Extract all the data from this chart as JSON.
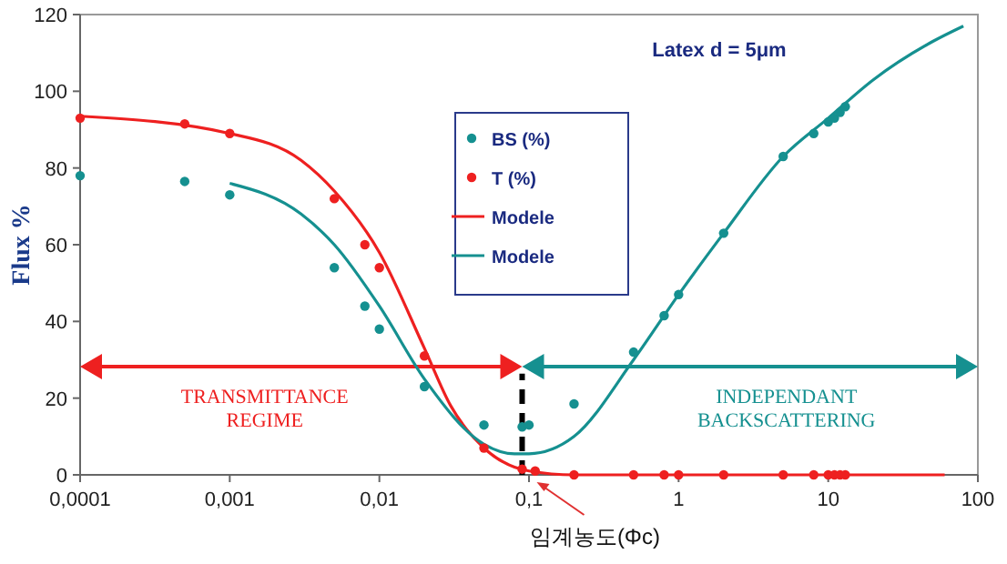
{
  "chart_data": {
    "type": "scatter",
    "title": "Latex d = 5μm",
    "ylabel": "Flux %",
    "log": "x",
    "grid": false,
    "legend": "top",
    "xlim": [
      0.0001,
      100
    ],
    "ylim": [
      0,
      120
    ],
    "xticks": [
      {
        "value": 0.0001,
        "label": "0,0001"
      },
      {
        "value": 0.001,
        "label": "0,001"
      },
      {
        "value": 0.01,
        "label": "0,01"
      },
      {
        "value": 0.1,
        "label": "0,1"
      },
      1,
      10,
      100
    ],
    "yticks": [
      0,
      20,
      40,
      60,
      80,
      100,
      120
    ],
    "series": [
      {
        "name": "BS (%)",
        "marker": "circle",
        "color": "#159090",
        "x": [
          0.0001,
          0.0005,
          0.001,
          0.005,
          0.008,
          0.01,
          0.02,
          0.05,
          0.09,
          0.1,
          0.2,
          0.5,
          0.8,
          1,
          2,
          5,
          8,
          10,
          11,
          12,
          13
        ],
        "values": [
          78,
          76.5,
          73,
          54,
          44,
          38,
          23,
          13,
          12.5,
          13,
          18.5,
          32,
          41.5,
          47,
          63,
          83,
          89,
          92,
          93,
          94.5,
          96
        ]
      },
      {
        "name": "T (%)",
        "marker": "circle",
        "color": "#ee2020",
        "x": [
          0.0001,
          0.0005,
          0.001,
          0.005,
          0.008,
          0.01,
          0.02,
          0.05,
          0.09,
          0.11,
          0.2,
          0.5,
          0.8,
          1,
          2,
          5,
          8,
          10,
          11,
          12,
          13
        ],
        "values": [
          93,
          91.5,
          89,
          72,
          60,
          54,
          31,
          7,
          1.5,
          1,
          0,
          0,
          0,
          0,
          0,
          0,
          0,
          0,
          0,
          0,
          0
        ]
      },
      {
        "name": "Modele",
        "type": "line",
        "marker": "none",
        "color": "#ee2020",
        "x": [
          0.0001,
          0.001,
          0.003,
          0.005,
          0.01,
          0.02,
          0.03,
          0.05,
          0.08,
          0.1,
          0.2,
          60
        ],
        "values": [
          93.5,
          89,
          82,
          74,
          58,
          33,
          18,
          7,
          2,
          1,
          0,
          0
        ]
      },
      {
        "name": "Modele",
        "type": "line",
        "marker": "none",
        "color": "#159090",
        "x": [
          0.001,
          0.003,
          0.005,
          0.01,
          0.02,
          0.05,
          0.08,
          0.1,
          0.2,
          0.5,
          1,
          2,
          5,
          10,
          20,
          50,
          80
        ],
        "values": [
          76,
          68,
          60,
          44,
          25,
          8,
          5.5,
          5.5,
          10,
          30,
          47,
          63,
          83,
          93,
          103,
          113,
          117
        ]
      }
    ],
    "ref_lines": [
      {
        "axis": "x",
        "value": 0.09,
        "color": "#000000",
        "line_style": "dashed"
      }
    ],
    "annotations": [
      "TRANSMITTANCE\nREGIME",
      "INDEPENDANT\nBACKSCATTERING",
      "임계농도(Φc)"
    ]
  }
}
